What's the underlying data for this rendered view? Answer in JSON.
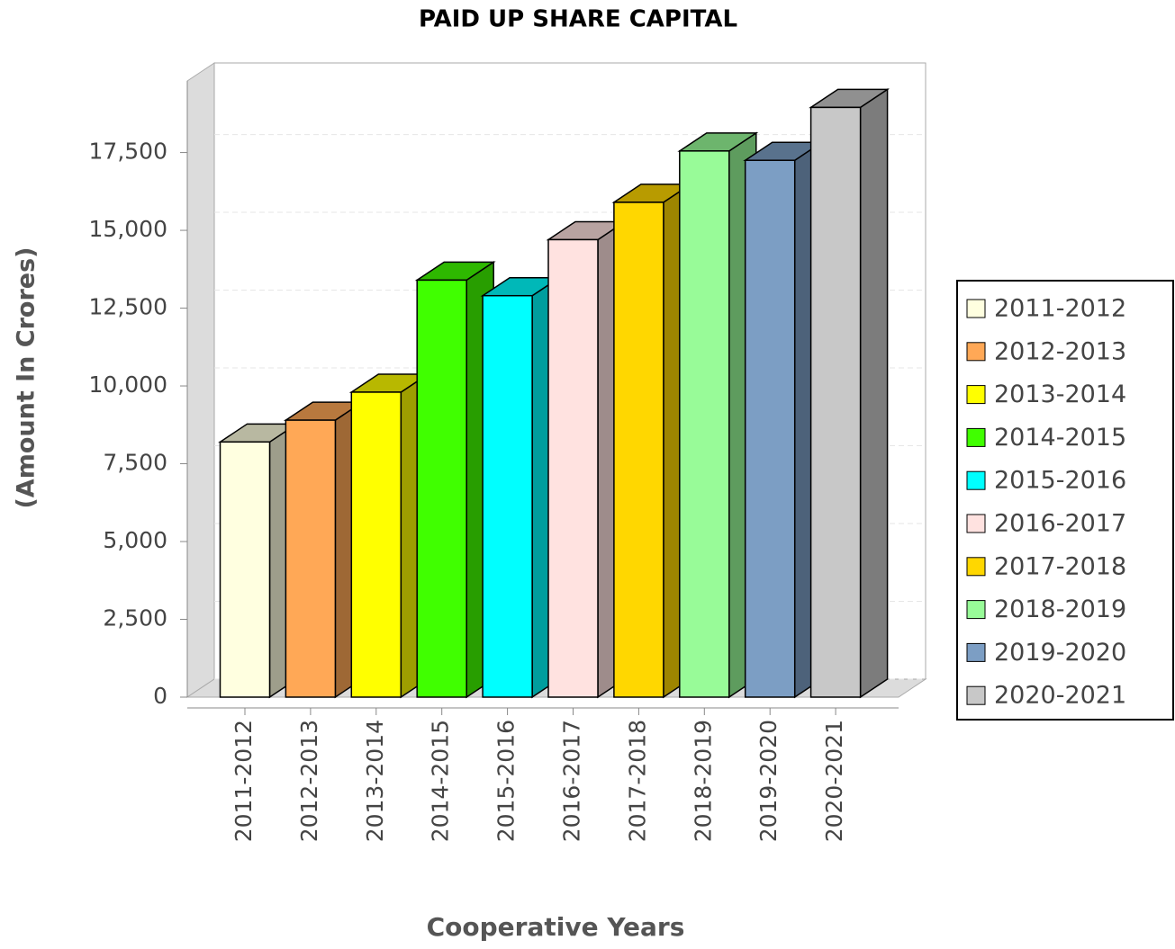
{
  "chart_data": {
    "type": "bar3d",
    "title": "PAID UP SHARE CAPITAL",
    "x_label": "Cooperative Years",
    "y_label": "(Amount In Crores)",
    "categories": [
      "2011-2012",
      "2012-2013",
      "2013-2014",
      "2014-2015",
      "2015-2016",
      "2016-2017",
      "2017-2018",
      "2018-2019",
      "2019-2020",
      "2020-2021"
    ],
    "values": [
      8200,
      8900,
      9800,
      13400,
      12900,
      14700,
      15900,
      17550,
      17250,
      18950
    ],
    "colors": [
      "#ffffe0",
      "#ffa856",
      "#ffff00",
      "#40ff00",
      "#00ffff",
      "#ffe2e0",
      "#ffd700",
      "#98fb98",
      "#7c9ec4",
      "#c8c8c8"
    ],
    "ylim": [
      0,
      19800
    ],
    "yticks": [
      0,
      {
        "value": 2500,
        "label": "2,500"
      },
      {
        "value": 5000,
        "label": "5,000"
      },
      {
        "value": 7500,
        "label": "7,500"
      },
      {
        "value": 10000,
        "label": "10,000"
      },
      {
        "value": 12500,
        "label": "12,500"
      },
      {
        "value": 15000,
        "label": "15,000"
      },
      {
        "value": 17500,
        "label": "17,500"
      }
    ],
    "grid": true,
    "legend": "right"
  }
}
